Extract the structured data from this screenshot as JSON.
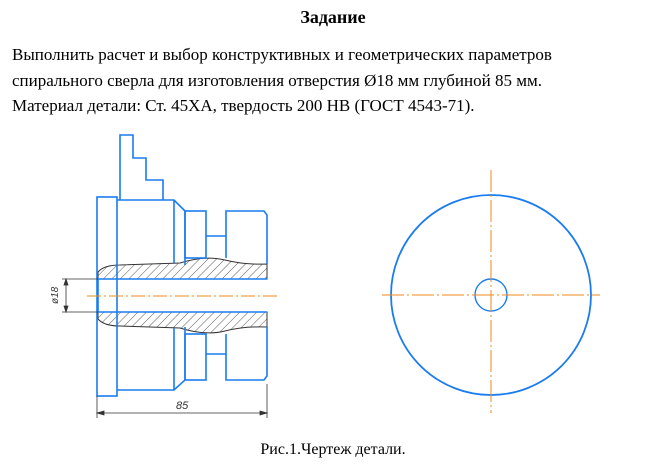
{
  "title": "Задание",
  "task_lines": [
    "Выполнить расчет и выбор конструктивных и геометрических параметров",
    "спирального сверла для изготовления отверстия Ø18 мм глубиной 85 мм.",
    "Материал детали: Ст. 45ХА, твердость 200 НВ (ГОСТ 4543-71)."
  ],
  "drawing": {
    "diameter_label": "ø18",
    "length_label": "85",
    "colors": {
      "contour": "#1a7cf0",
      "centerline": "#f08a1e",
      "dimension": "#333333"
    }
  },
  "caption": "Рис.1.Чертеж детали."
}
